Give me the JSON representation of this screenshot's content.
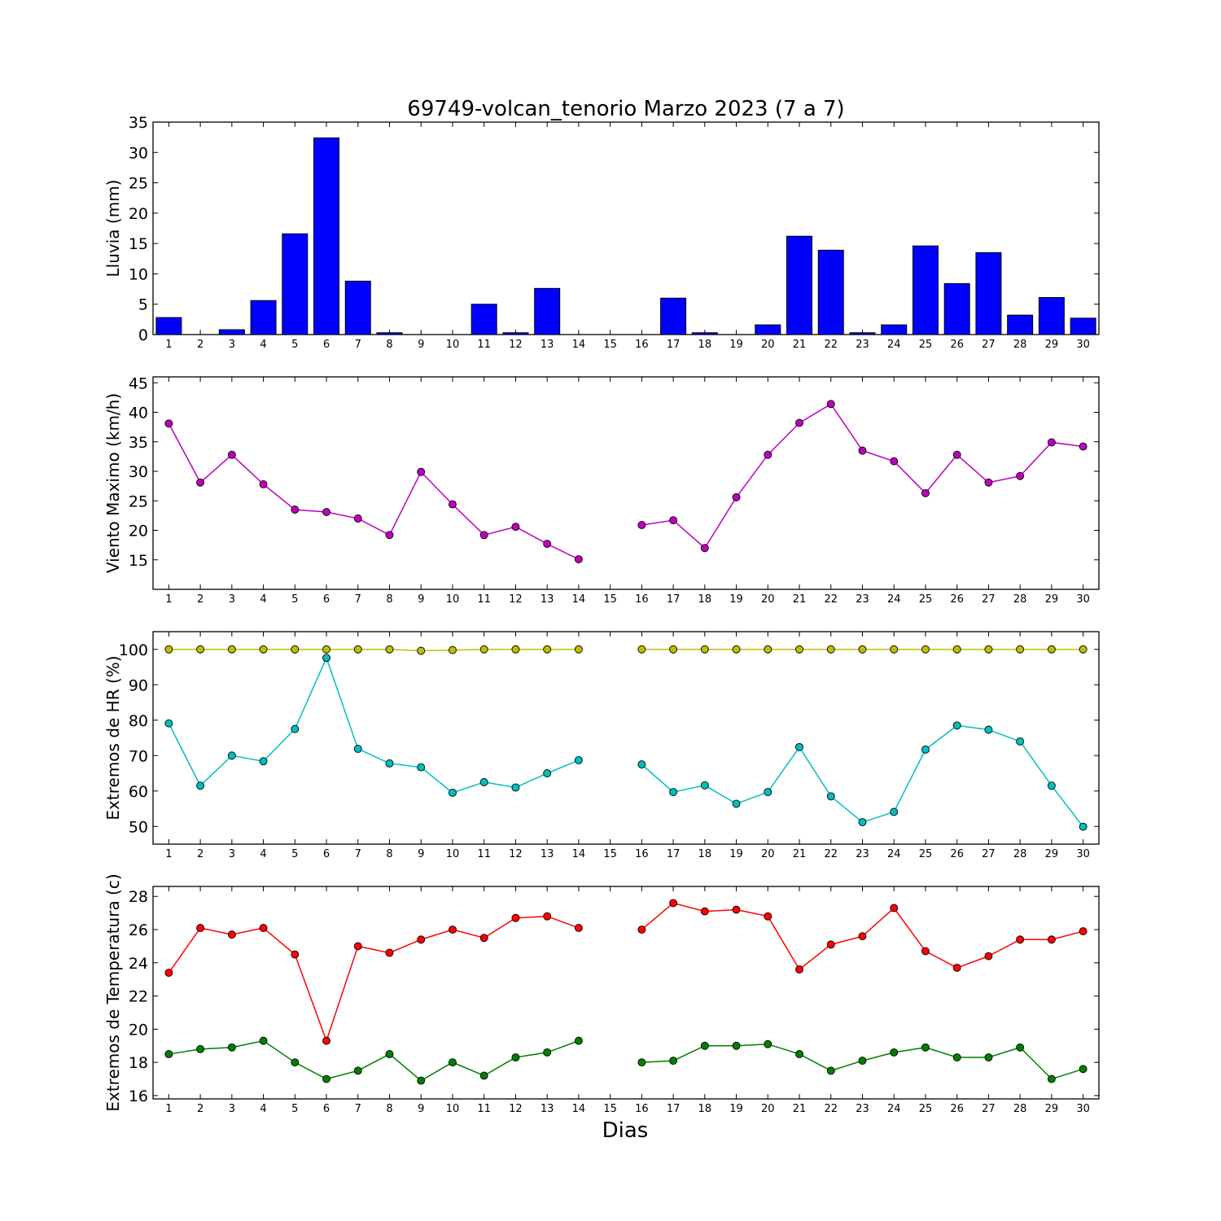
{
  "chart_data": [
    {
      "type": "bar",
      "title": "69749-volcan_tenorio Marzo 2023  (7 a 7)",
      "ylabel": "Lluvia (mm)",
      "xlabel": "",
      "ylim": [
        0,
        35
      ],
      "yticks": [
        0,
        5,
        10,
        15,
        20,
        25,
        30,
        35
      ],
      "categories": [
        "1",
        "2",
        "3",
        "4",
        "5",
        "6",
        "7",
        "8",
        "9",
        "10",
        "11",
        "12",
        "13",
        "14",
        "15",
        "16",
        "17",
        "18",
        "19",
        "20",
        "21",
        "22",
        "23",
        "24",
        "25",
        "26",
        "27",
        "28",
        "29",
        "30"
      ],
      "series": [
        {
          "color": "#0000ff",
          "values": [
            2.8,
            0,
            0.8,
            5.6,
            16.6,
            32.4,
            8.8,
            0.3,
            0,
            0,
            5.0,
            0.3,
            7.6,
            0,
            0,
            0,
            6.0,
            0.3,
            0,
            1.6,
            16.2,
            13.9,
            0.3,
            1.6,
            14.6,
            8.4,
            13.5,
            3.2,
            6.1,
            2.7
          ]
        }
      ],
      "grid": false
    },
    {
      "type": "line",
      "ylabel": "Viento Maximo (km/h)",
      "xlabel": "",
      "ylim": [
        10,
        46
      ],
      "yticks": [
        15,
        20,
        25,
        30,
        35,
        40,
        45
      ],
      "categories": [
        "1",
        "2",
        "3",
        "4",
        "5",
        "6",
        "7",
        "8",
        "9",
        "10",
        "11",
        "12",
        "13",
        "14",
        "15",
        "16",
        "17",
        "18",
        "19",
        "20",
        "21",
        "22",
        "23",
        "24",
        "25",
        "26",
        "27",
        "28",
        "29",
        "30"
      ],
      "series": [
        {
          "color": "#bf00bf",
          "values": [
            38.1,
            28.1,
            32.8,
            27.8,
            23.5,
            23.1,
            22.0,
            19.2,
            29.9,
            24.4,
            19.2,
            20.6,
            17.7,
            15.1,
            null,
            20.9,
            21.7,
            17.0,
            25.6,
            32.8,
            38.2,
            41.4,
            33.5,
            31.7,
            26.3,
            32.8,
            28.1,
            29.2,
            34.9,
            34.2
          ]
        }
      ],
      "grid": false
    },
    {
      "type": "line",
      "ylabel": "Extremos de HR (%)",
      "xlabel": "",
      "ylim": [
        45,
        105
      ],
      "yticks": [
        50,
        60,
        70,
        80,
        90,
        100
      ],
      "categories": [
        "1",
        "2",
        "3",
        "4",
        "5",
        "6",
        "7",
        "8",
        "9",
        "10",
        "11",
        "12",
        "13",
        "14",
        "15",
        "16",
        "17",
        "18",
        "19",
        "20",
        "21",
        "22",
        "23",
        "24",
        "25",
        "26",
        "27",
        "28",
        "29",
        "30"
      ],
      "series": [
        {
          "color": "#bfbf00",
          "values": [
            100,
            100,
            100,
            100,
            100,
            100,
            100,
            100,
            99.6,
            99.8,
            100,
            100,
            100,
            100,
            null,
            100,
            100,
            100,
            100,
            100,
            100,
            100,
            100,
            100,
            100,
            100,
            100,
            100,
            100,
            100
          ]
        },
        {
          "color": "#00bfbf",
          "values": [
            79.1,
            61.5,
            70.0,
            68.4,
            77.5,
            97.6,
            71.9,
            67.8,
            66.7,
            59.5,
            62.5,
            61.0,
            65.0,
            68.7,
            null,
            67.5,
            59.7,
            61.6,
            56.4,
            59.7,
            72.4,
            58.5,
            51.2,
            54.1,
            71.7,
            78.5,
            77.3,
            74.0,
            61.5,
            49.9
          ]
        }
      ],
      "grid": false
    },
    {
      "type": "line",
      "ylabel": "Extremos de Temperatura (c)",
      "xlabel": "Dias",
      "ylim": [
        15.8,
        28.6
      ],
      "yticks": [
        16,
        18,
        20,
        22,
        24,
        26,
        28
      ],
      "categories": [
        "1",
        "2",
        "3",
        "4",
        "5",
        "6",
        "7",
        "8",
        "9",
        "10",
        "11",
        "12",
        "13",
        "14",
        "15",
        "16",
        "17",
        "18",
        "19",
        "20",
        "21",
        "22",
        "23",
        "24",
        "25",
        "26",
        "27",
        "28",
        "29",
        "30"
      ],
      "series": [
        {
          "color": "#ff0000",
          "values": [
            23.4,
            26.1,
            25.7,
            26.1,
            24.5,
            19.3,
            25.0,
            24.6,
            25.4,
            26.0,
            25.5,
            26.7,
            26.8,
            26.1,
            null,
            26.0,
            27.6,
            27.1,
            27.2,
            26.8,
            23.6,
            25.1,
            25.6,
            27.3,
            24.7,
            23.7,
            24.4,
            25.4,
            25.4,
            25.9
          ]
        },
        {
          "color": "#007f00",
          "values": [
            18.5,
            18.8,
            18.9,
            19.3,
            18.0,
            17.0,
            17.5,
            18.5,
            16.9,
            18.0,
            17.2,
            18.3,
            18.6,
            19.3,
            null,
            18.0,
            18.1,
            19.0,
            19.0,
            19.1,
            18.5,
            17.5,
            18.1,
            18.6,
            18.9,
            18.3,
            18.3,
            18.9,
            17.0,
            17.6
          ]
        }
      ],
      "grid": false
    }
  ]
}
